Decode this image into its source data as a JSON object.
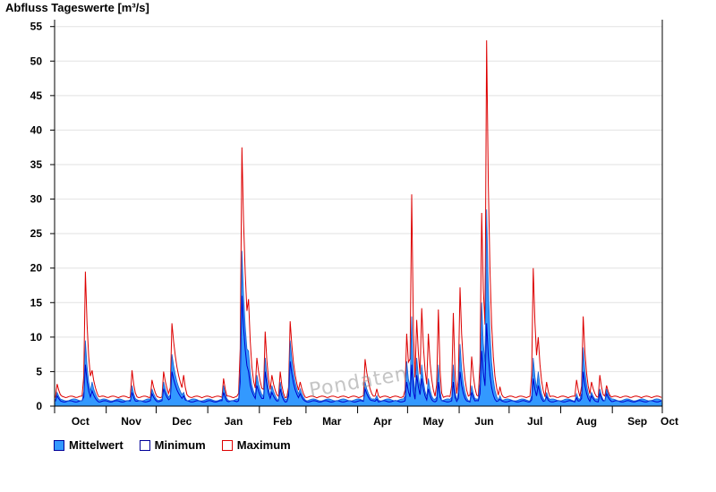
{
  "chart_data": {
    "type": "area",
    "title": "Abfluss Tageswerte [m³/s]",
    "ylim": [
      0,
      56
    ],
    "yticks": [
      0,
      5,
      10,
      15,
      20,
      25,
      30,
      35,
      40,
      45,
      50,
      55
    ],
    "grid": true,
    "legend_position": "bottom-left",
    "months": [
      "Oct",
      "Nov",
      "Dec",
      "Jan",
      "Feb",
      "Mar",
      "Apr",
      "May",
      "Jun",
      "Jul",
      "Aug",
      "Sep",
      "Oct"
    ],
    "month_days": [
      31,
      30,
      31,
      31,
      28,
      31,
      30,
      31,
      30,
      31,
      31,
      30
    ],
    "baseline": {
      "mean": 0.9,
      "min": 0.7,
      "max": 1.2
    },
    "events": [
      {
        "day": 1,
        "mean": 2.0,
        "min": 1.5,
        "max": 3.2,
        "width": 3
      },
      {
        "day": 18,
        "mean": 9.5,
        "min": 6.0,
        "max": 19.5,
        "width": 2
      },
      {
        "day": 22,
        "mean": 3.5,
        "min": 2.2,
        "max": 5.2,
        "width": 3
      },
      {
        "day": 46,
        "mean": 3.0,
        "min": 2.0,
        "max": 5.2,
        "width": 2
      },
      {
        "day": 58,
        "mean": 2.5,
        "min": 1.8,
        "max": 3.8,
        "width": 3
      },
      {
        "day": 65,
        "mean": 3.5,
        "min": 2.5,
        "max": 5.0,
        "width": 3
      },
      {
        "day": 70,
        "mean": 7.5,
        "min": 5.0,
        "max": 12.0,
        "width": 4
      },
      {
        "day": 77,
        "mean": 2.0,
        "min": 1.5,
        "max": 4.5,
        "width": 2
      },
      {
        "day": 101,
        "mean": 3.0,
        "min": 2.0,
        "max": 4.0,
        "width": 2
      },
      {
        "day": 112,
        "mean": 22.5,
        "min": 16.0,
        "max": 37.5,
        "width": 3
      },
      {
        "day": 116,
        "mean": 8.0,
        "min": 5.0,
        "max": 15.5,
        "width": 2
      },
      {
        "day": 121,
        "mean": 4.5,
        "min": 3.0,
        "max": 7.0,
        "width": 3
      },
      {
        "day": 126,
        "mean": 7.0,
        "min": 5.0,
        "max": 10.8,
        "width": 2
      },
      {
        "day": 130,
        "mean": 3.0,
        "min": 2.0,
        "max": 4.5,
        "width": 3
      },
      {
        "day": 135,
        "mean": 3.5,
        "min": 2.5,
        "max": 5.0,
        "width": 2
      },
      {
        "day": 141,
        "mean": 9.5,
        "min": 6.5,
        "max": 12.3,
        "width": 3
      },
      {
        "day": 147,
        "mean": 2.5,
        "min": 1.8,
        "max": 3.5,
        "width": 3
      },
      {
        "day": 186,
        "mean": 3.5,
        "min": 2.5,
        "max": 6.8,
        "width": 3
      },
      {
        "day": 193,
        "mean": 1.5,
        "min": 1.0,
        "max": 2.5,
        "width": 2
      },
      {
        "day": 211,
        "mean": 6.5,
        "min": 3.5,
        "max": 10.5,
        "width": 2
      },
      {
        "day": 214,
        "mean": 13.0,
        "min": 6.0,
        "max": 30.7,
        "width": 1
      },
      {
        "day": 217,
        "mean": 7.0,
        "min": 4.5,
        "max": 12.5,
        "width": 2
      },
      {
        "day": 220,
        "mean": 6.0,
        "min": 4.0,
        "max": 14.2,
        "width": 2
      },
      {
        "day": 224,
        "mean": 4.0,
        "min": 2.5,
        "max": 10.5,
        "width": 2
      },
      {
        "day": 230,
        "mean": 6.0,
        "min": 3.5,
        "max": 14.0,
        "width": 1
      },
      {
        "day": 239,
        "mean": 6.0,
        "min": 3.5,
        "max": 13.5,
        "width": 1
      },
      {
        "day": 243,
        "mean": 9.0,
        "min": 5.0,
        "max": 17.2,
        "width": 2
      },
      {
        "day": 250,
        "mean": 3.0,
        "min": 2.0,
        "max": 7.2,
        "width": 2
      },
      {
        "day": 256,
        "mean": 15.0,
        "min": 8.0,
        "max": 28.0,
        "width": 2
      },
      {
        "day": 259,
        "mean": 28.5,
        "min": 12.0,
        "max": 53.0,
        "width": 2
      },
      {
        "day": 267,
        "mean": 1.5,
        "min": 1.0,
        "max": 2.8,
        "width": 2
      },
      {
        "day": 287,
        "mean": 7.0,
        "min": 4.0,
        "max": 20.0,
        "width": 2
      },
      {
        "day": 290,
        "mean": 5.0,
        "min": 3.0,
        "max": 10.0,
        "width": 2
      },
      {
        "day": 295,
        "mean": 2.0,
        "min": 1.4,
        "max": 3.5,
        "width": 2
      },
      {
        "day": 313,
        "mean": 1.8,
        "min": 1.2,
        "max": 3.8,
        "width": 2
      },
      {
        "day": 317,
        "mean": 8.5,
        "min": 5.0,
        "max": 13.0,
        "width": 2
      },
      {
        "day": 322,
        "mean": 2.0,
        "min": 1.5,
        "max": 3.5,
        "width": 3
      },
      {
        "day": 327,
        "mean": 2.5,
        "min": 1.8,
        "max": 4.5,
        "width": 2
      },
      {
        "day": 331,
        "mean": 2.5,
        "min": 1.8,
        "max": 3.0,
        "width": 3
      }
    ],
    "series": [
      {
        "name": "Mittelwert",
        "color": "#3399ff"
      },
      {
        "name": "Minimum",
        "color": "#000099"
      },
      {
        "name": "Maximum",
        "color": "#dd0000"
      }
    ]
  },
  "watermark": "Pondaten"
}
